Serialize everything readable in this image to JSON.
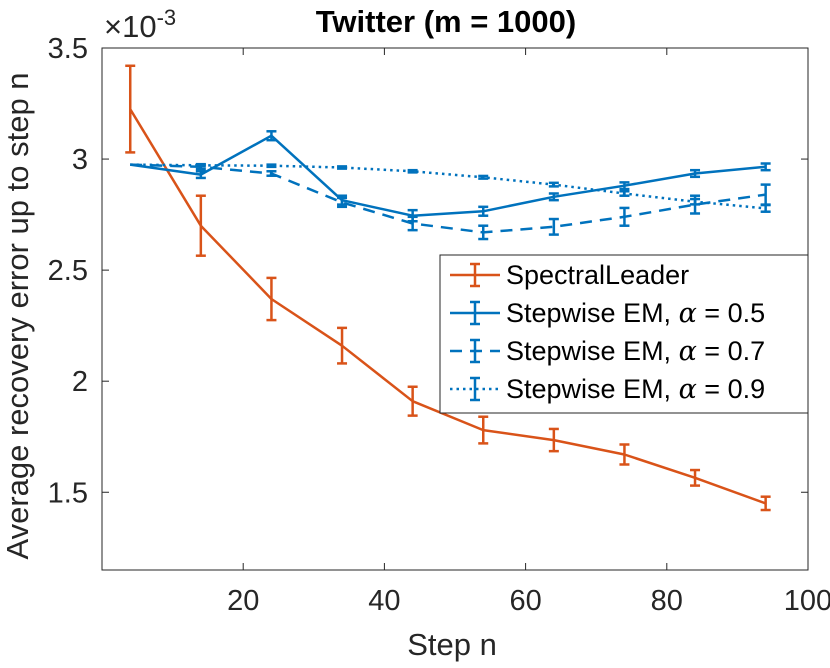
{
  "chart_data": {
    "type": "line",
    "title": "Twitter (m = 1000)",
    "xlabel": "Step n",
    "ylabel": "Average recovery error up to step n",
    "y_multiplier": "×10",
    "y_exponent": "-3",
    "xlim": [
      0,
      100
    ],
    "ylim": [
      1.15,
      3.5
    ],
    "xticks": [
      20,
      40,
      60,
      80,
      100
    ],
    "xtick_labels": [
      "20",
      "40",
      "60",
      "80",
      "100"
    ],
    "yticks": [
      1.5,
      2,
      2.5,
      3,
      3.5
    ],
    "ytick_labels": [
      "1.5",
      "2",
      "2.5",
      "3",
      "3.5"
    ],
    "grid": false,
    "legend_position": "center-right",
    "series": [
      {
        "name": "SpectralLeader",
        "color": "#D95319",
        "style": "solid",
        "x": [
          4,
          14,
          24,
          34,
          44,
          54,
          64,
          74,
          84,
          94
        ],
        "y": [
          3.225,
          2.7,
          2.37,
          2.16,
          1.91,
          1.78,
          1.735,
          1.67,
          1.565,
          1.45
        ],
        "err": [
          0.195,
          0.135,
          0.095,
          0.08,
          0.065,
          0.06,
          0.05,
          0.045,
          0.035,
          0.03
        ]
      },
      {
        "name": "Stepwise EM, α = 0.5",
        "legend_prefix": "Stepwise EM, ",
        "legend_suffix": " = 0.5",
        "color": "#0072BD",
        "style": "solid",
        "x": [
          4,
          14,
          24,
          34,
          44,
          54,
          64,
          74,
          84,
          94
        ],
        "y": [
          2.975,
          2.93,
          3.105,
          2.815,
          2.745,
          2.765,
          2.83,
          2.88,
          2.935,
          2.965
        ],
        "err": [
          0,
          0.015,
          0.02,
          0.02,
          0.025,
          0.02,
          0.015,
          0.015,
          0.015,
          0.015
        ]
      },
      {
        "name": "Stepwise EM, α = 0.7",
        "legend_prefix": "Stepwise EM, ",
        "legend_suffix": " = 0.7",
        "color": "#0072BD",
        "style": "dashed",
        "x": [
          4,
          14,
          24,
          34,
          44,
          54,
          64,
          74,
          84,
          94
        ],
        "y": [
          2.975,
          2.965,
          2.935,
          2.805,
          2.71,
          2.67,
          2.695,
          2.74,
          2.795,
          2.84
        ],
        "err": [
          0,
          0.01,
          0.01,
          0.02,
          0.03,
          0.03,
          0.035,
          0.04,
          0.04,
          0.045
        ]
      },
      {
        "name": "Stepwise EM, α = 0.9",
        "legend_prefix": "Stepwise EM, ",
        "legend_suffix": " = 0.9",
        "color": "#0072BD",
        "style": "dotted",
        "x": [
          4,
          14,
          24,
          34,
          44,
          54,
          64,
          74,
          84,
          94
        ],
        "y": [
          2.975,
          2.972,
          2.97,
          2.962,
          2.945,
          2.918,
          2.885,
          2.845,
          2.808,
          2.778
        ],
        "err": [
          0,
          0.005,
          0.005,
          0.005,
          0.005,
          0.006,
          0.008,
          0.01,
          0.012,
          0.015
        ]
      }
    ]
  },
  "legend_symbol": "α"
}
